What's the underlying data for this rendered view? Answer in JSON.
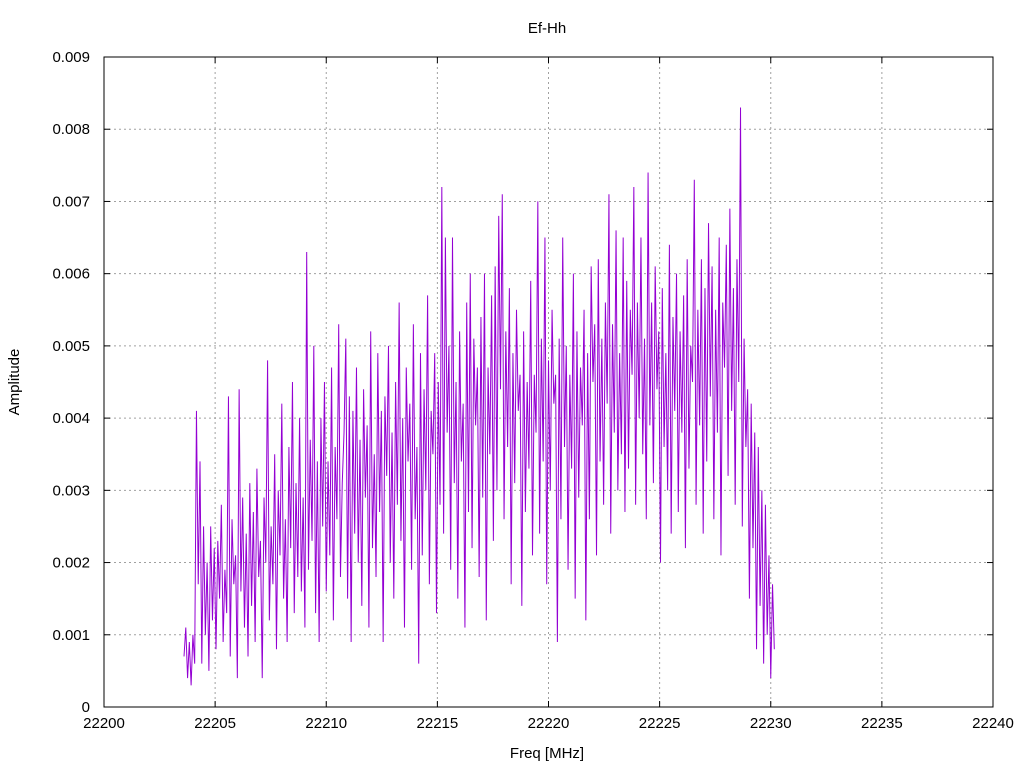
{
  "chart_data": {
    "type": "line",
    "title": "Ef-Hh",
    "xlabel": "Freq [MHz]",
    "ylabel": "Amplitude",
    "xlim": [
      22200,
      22240
    ],
    "ylim": [
      0,
      0.009
    ],
    "x_ticks": [
      "22200",
      "22205",
      "22210",
      "22215",
      "22220",
      "22225",
      "22230",
      "22235",
      "22240"
    ],
    "y_ticks": [
      "0",
      "0.001",
      "0.002",
      "0.003",
      "0.004",
      "0.005",
      "0.006",
      "0.007",
      "0.008",
      "0.009"
    ],
    "grid": true,
    "series": [
      {
        "color": "#9400d3",
        "x_start": 22203.6,
        "x_step": 0.08,
        "values": [
          0.0007,
          0.0011,
          0.0004,
          0.0009,
          0.0003,
          0.001,
          0.0006,
          0.0041,
          0.0017,
          0.0034,
          0.0006,
          0.0025,
          0.001,
          0.002,
          0.0005,
          0.0025,
          0.0012,
          0.0022,
          0.0008,
          0.0023,
          0.0015,
          0.0028,
          0.0009,
          0.0019,
          0.0013,
          0.0043,
          0.0007,
          0.0026,
          0.0017,
          0.0021,
          0.0004,
          0.0044,
          0.0016,
          0.0029,
          0.0011,
          0.0024,
          0.0007,
          0.0031,
          0.0014,
          0.0027,
          0.0009,
          0.0033,
          0.0018,
          0.0023,
          0.0004,
          0.0029,
          0.002,
          0.0048,
          0.0012,
          0.0025,
          0.0017,
          0.0035,
          0.0008,
          0.003,
          0.0021,
          0.0042,
          0.0015,
          0.0026,
          0.0009,
          0.0036,
          0.0022,
          0.0045,
          0.0013,
          0.0031,
          0.0018,
          0.004,
          0.0016,
          0.0029,
          0.0011,
          0.0063,
          0.0019,
          0.0037,
          0.0023,
          0.005,
          0.0013,
          0.0034,
          0.0009,
          0.004,
          0.0025,
          0.0045,
          0.0016,
          0.0034,
          0.0021,
          0.0047,
          0.0012,
          0.0036,
          0.0026,
          0.0053,
          0.0018,
          0.0031,
          0.0038,
          0.0051,
          0.0015,
          0.0043,
          0.0009,
          0.0041,
          0.0024,
          0.0047,
          0.002,
          0.0037,
          0.0014,
          0.0044,
          0.0029,
          0.0039,
          0.0011,
          0.0052,
          0.0022,
          0.0035,
          0.0018,
          0.0049,
          0.0027,
          0.0041,
          0.0009,
          0.0043,
          0.0032,
          0.005,
          0.002,
          0.0038,
          0.0015,
          0.0045,
          0.0028,
          0.0056,
          0.0023,
          0.004,
          0.0011,
          0.0047,
          0.0034,
          0.0042,
          0.0019,
          0.0053,
          0.0026,
          0.0036,
          0.0006,
          0.0049,
          0.0021,
          0.0044,
          0.003,
          0.0057,
          0.0017,
          0.0041,
          0.0035,
          0.0049,
          0.0013,
          0.0045,
          0.0028,
          0.0072,
          0.0024,
          0.0065,
          0.0038,
          0.005,
          0.0019,
          0.0065,
          0.0031,
          0.0045,
          0.0015,
          0.0052,
          0.0034,
          0.0042,
          0.0011,
          0.0056,
          0.0027,
          0.006,
          0.0022,
          0.0051,
          0.0039,
          0.0047,
          0.0018,
          0.0054,
          0.0029,
          0.006,
          0.0012,
          0.0047,
          0.0035,
          0.0057,
          0.0023,
          0.0061,
          0.003,
          0.0068,
          0.0044,
          0.0071,
          0.0026,
          0.0052,
          0.0036,
          0.0058,
          0.0017,
          0.0049,
          0.0031,
          0.0055,
          0.0041,
          0.0046,
          0.0014,
          0.0052,
          0.0027,
          0.0045,
          0.0033,
          0.0059,
          0.0021,
          0.0046,
          0.0038,
          0.007,
          0.0024,
          0.0051,
          0.0034,
          0.0065,
          0.0017,
          0.0048,
          0.003,
          0.0055,
          0.0042,
          0.0046,
          0.0009,
          0.0051,
          0.0026,
          0.0065,
          0.0036,
          0.005,
          0.0019,
          0.0046,
          0.0033,
          0.006,
          0.0015,
          0.0052,
          0.0029,
          0.0047,
          0.0039,
          0.0055,
          0.0012,
          0.0049,
          0.0026,
          0.0061,
          0.0045,
          0.0053,
          0.0021,
          0.0062,
          0.0034,
          0.0051,
          0.0028,
          0.0056,
          0.0042,
          0.0071,
          0.0024,
          0.0053,
          0.0038,
          0.0066,
          0.003,
          0.0049,
          0.0035,
          0.0065,
          0.0027,
          0.0059,
          0.0033,
          0.0055,
          0.0046,
          0.0072,
          0.0028,
          0.0056,
          0.004,
          0.0065,
          0.0035,
          0.0051,
          0.0026,
          0.0074,
          0.0039,
          0.0056,
          0.0031,
          0.0061,
          0.0044,
          0.0052,
          0.002,
          0.0058,
          0.0036,
          0.0049,
          0.003,
          0.0064,
          0.0024,
          0.0054,
          0.0041,
          0.006,
          0.0027,
          0.0052,
          0.0038,
          0.0057,
          0.0022,
          0.0062,
          0.0033,
          0.005,
          0.0045,
          0.0073,
          0.0028,
          0.0055,
          0.0039,
          0.0062,
          0.0024,
          0.0058,
          0.0034,
          0.0067,
          0.0043,
          0.0061,
          0.0026,
          0.0055,
          0.0038,
          0.0065,
          0.0021,
          0.0056,
          0.0047,
          0.0064,
          0.0032,
          0.0069,
          0.0041,
          0.0058,
          0.0028,
          0.0062,
          0.0045,
          0.0083,
          0.0025,
          0.0051,
          0.0036,
          0.0044,
          0.0015,
          0.0042,
          0.0022,
          0.0038,
          0.0008,
          0.0036,
          0.0014,
          0.003,
          0.0006,
          0.0028,
          0.001,
          0.0021,
          0.0004,
          0.0017,
          0.0008
        ]
      }
    ]
  }
}
